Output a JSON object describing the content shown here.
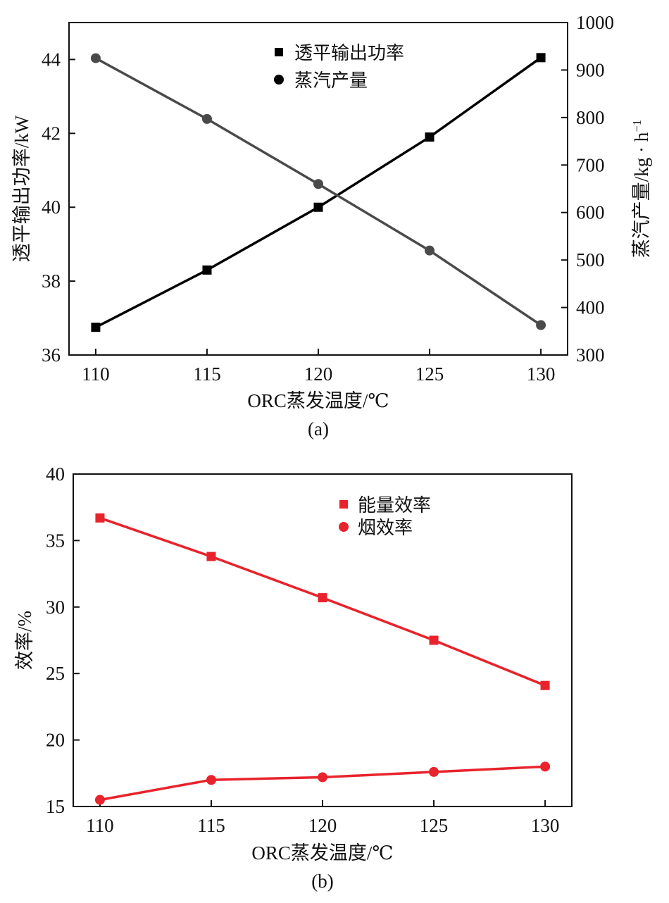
{
  "chart_data": [
    {
      "type": "line",
      "caption": "(a)",
      "xlabel": "ORC蒸发温度/℃",
      "ylabel_left": "透平输出功率/kW",
      "ylabel_right": "蒸汽产量/kg · h",
      "ylabel_right_sup": "−1",
      "x": [
        110,
        115,
        120,
        125,
        130
      ],
      "x_ticks": [
        "110",
        "115",
        "120",
        "125",
        "130"
      ],
      "xlim": [
        108.8,
        131.2
      ],
      "ylim_left": [
        36,
        45
      ],
      "ylim_right": [
        300,
        1000
      ],
      "y_ticks_left": [
        "36",
        "38",
        "40",
        "42",
        "44"
      ],
      "y_ticks_right": [
        "300",
        "400",
        "500",
        "600",
        "700",
        "800",
        "900",
        "1000"
      ],
      "series": [
        {
          "name": "透平输出功率",
          "axis": "left",
          "marker": "square",
          "color": "#000000",
          "values": [
            36.75,
            38.3,
            40.0,
            41.9,
            44.05
          ]
        },
        {
          "name": "蒸汽产量",
          "axis": "right",
          "marker": "circle",
          "color": "#4a4a4a",
          "values": [
            925,
            797,
            660,
            520,
            363
          ]
        }
      ]
    },
    {
      "type": "line",
      "caption": "(b)",
      "xlabel": "ORC蒸发温度/℃",
      "ylabel": "效率/%",
      "x": [
        110,
        115,
        120,
        125,
        130
      ],
      "x_ticks": [
        "110",
        "115",
        "120",
        "125",
        "130"
      ],
      "xlim": [
        108.8,
        131.2
      ],
      "ylim": [
        15,
        40
      ],
      "y_ticks": [
        "15",
        "20",
        "25",
        "30",
        "35",
        "40"
      ],
      "series": [
        {
          "name": "能量效率",
          "marker": "square",
          "color": "#e8232b",
          "values": [
            36.7,
            33.8,
            30.7,
            27.5,
            24.1
          ]
        },
        {
          "name": "烟效率",
          "marker": "circle",
          "color": "#e8232b",
          "values": [
            15.5,
            17.0,
            17.2,
            17.6,
            18.0
          ]
        }
      ]
    }
  ]
}
